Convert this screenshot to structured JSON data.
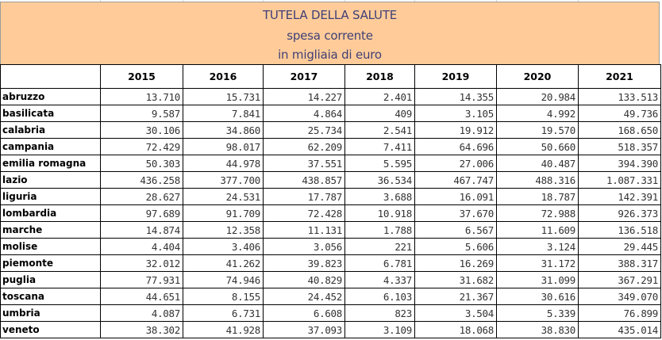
{
  "title": {
    "line1": "TUTELA DELLA SALUTE",
    "line2": "spesa corrente",
    "line3": "in migliaia di euro"
  },
  "colors": {
    "banner_background": "#ffcc99",
    "title_text": "#3f3f76",
    "grid_border": "#000000"
  },
  "table": {
    "corner_header": "",
    "years": [
      "2015",
      "2016",
      "2017",
      "2018",
      "2019",
      "2020",
      "2021"
    ],
    "rows": [
      {
        "region": "abruzzo",
        "values": [
          "13.710",
          "15.731",
          "14.227",
          "2.401",
          "14.355",
          "20.984",
          "133.513"
        ]
      },
      {
        "region": "basilicata",
        "values": [
          "9.587",
          "7.841",
          "4.864",
          "409",
          "3.105",
          "4.992",
          "49.736"
        ]
      },
      {
        "region": "calabria",
        "values": [
          "30.106",
          "34.860",
          "25.734",
          "2.541",
          "19.912",
          "19.570",
          "168.650"
        ]
      },
      {
        "region": "campania",
        "values": [
          "72.429",
          "98.017",
          "62.209",
          "7.411",
          "64.696",
          "50.660",
          "518.357"
        ]
      },
      {
        "region": "emilia romagna",
        "values": [
          "50.303",
          "44.978",
          "37.551",
          "5.595",
          "27.006",
          "40.487",
          "394.390"
        ]
      },
      {
        "region": "lazio",
        "values": [
          "436.258",
          "377.700",
          "438.857",
          "36.534",
          "467.747",
          "488.316",
          "1.087.331"
        ]
      },
      {
        "region": "liguria",
        "values": [
          "28.627",
          "24.531",
          "17.787",
          "3.688",
          "16.091",
          "18.787",
          "142.391"
        ]
      },
      {
        "region": "lombardia",
        "values": [
          "97.689",
          "91.709",
          "72.428",
          "10.918",
          "37.670",
          "72.988",
          "926.373"
        ]
      },
      {
        "region": "marche",
        "values": [
          "14.874",
          "12.358",
          "11.131",
          "1.788",
          "6.567",
          "11.609",
          "136.518"
        ]
      },
      {
        "region": "molise",
        "values": [
          "4.404",
          "3.406",
          "3.056",
          "221",
          "5.606",
          "3.124",
          "29.445"
        ]
      },
      {
        "region": "piemonte",
        "values": [
          "32.012",
          "41.262",
          "39.823",
          "6.781",
          "16.269",
          "31.172",
          "388.317"
        ]
      },
      {
        "region": "puglia",
        "values": [
          "77.931",
          "74.946",
          "40.829",
          "4.337",
          "31.682",
          "31.099",
          "367.291"
        ]
      },
      {
        "region": "toscana",
        "values": [
          "44.651",
          "8.155",
          "24.452",
          "6.103",
          "21.367",
          "30.616",
          "349.070"
        ]
      },
      {
        "region": "umbria",
        "values": [
          "4.087",
          "6.731",
          "6.608",
          "823",
          "3.504",
          "5.339",
          "76.899"
        ]
      },
      {
        "region": "veneto",
        "values": [
          "38.302",
          "41.928",
          "37.093",
          "3.109",
          "18.068",
          "38.830",
          "435.014"
        ]
      }
    ]
  }
}
